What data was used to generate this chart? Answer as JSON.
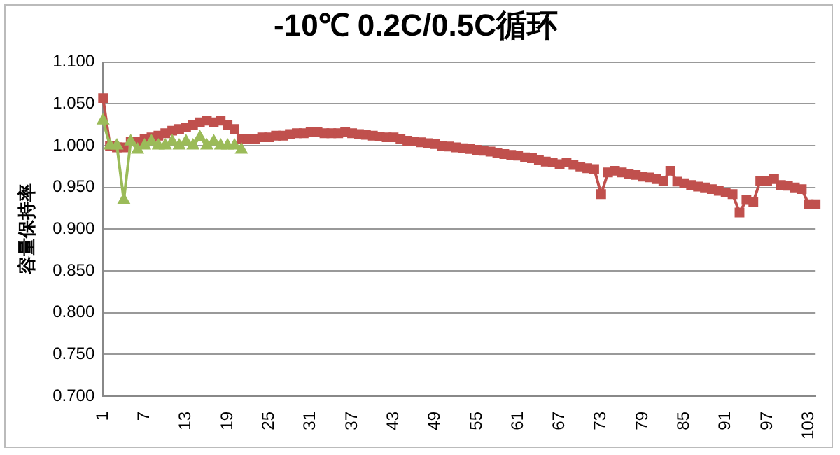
{
  "chart_data": {
    "type": "line",
    "title": "-10℃ 0.2C/0.5C循环",
    "ylabel": "容量保持率",
    "categories": [
      "1",
      null,
      null,
      null,
      null,
      null,
      "7",
      null,
      null,
      null,
      null,
      null,
      "13",
      null,
      null,
      null,
      null,
      null,
      "19",
      null,
      null,
      null,
      null,
      null,
      "25",
      null,
      null,
      null,
      null,
      null,
      "31",
      null,
      null,
      null,
      null,
      null,
      "37",
      null,
      null,
      null,
      null,
      null,
      "43",
      null,
      null,
      null,
      null,
      null,
      "49",
      null,
      null,
      null,
      null,
      null,
      "55",
      null,
      null,
      null,
      null,
      null,
      "61",
      null,
      null,
      null,
      null,
      null,
      "67",
      null,
      null,
      null,
      null,
      null,
      "73",
      null,
      null,
      null,
      null,
      null,
      "79",
      null,
      null,
      null,
      null,
      null,
      "85",
      null,
      null,
      null,
      null,
      null,
      "91",
      null,
      null,
      null,
      null,
      null,
      "97",
      null,
      null,
      null,
      null,
      null,
      "103",
      null
    ],
    "series": [
      {
        "color": "#c0504d",
        "marker": "square",
        "values": [
          1.057,
          1.0,
          0.998,
          0.998,
          1.005,
          1.005,
          1.008,
          1.01,
          1.012,
          1.015,
          1.018,
          1.02,
          1.022,
          1.025,
          1.028,
          1.03,
          1.028,
          1.03,
          1.025,
          1.02,
          1.008,
          1.008,
          1.008,
          1.01,
          1.01,
          1.012,
          1.012,
          1.014,
          1.015,
          1.015,
          1.016,
          1.016,
          1.015,
          1.015,
          1.015,
          1.016,
          1.015,
          1.014,
          1.013,
          1.012,
          1.011,
          1.01,
          1.01,
          1.008,
          1.006,
          1.005,
          1.004,
          1.003,
          1.002,
          1.0,
          0.999,
          0.998,
          0.997,
          0.996,
          0.995,
          0.994,
          0.993,
          0.991,
          0.99,
          0.989,
          0.988,
          0.986,
          0.985,
          0.983,
          0.981,
          0.98,
          0.978,
          0.98,
          0.977,
          0.975,
          0.973,
          0.972,
          0.942,
          0.968,
          0.97,
          0.968,
          0.966,
          0.965,
          0.963,
          0.962,
          0.96,
          0.958,
          0.97,
          0.957,
          0.955,
          0.953,
          0.951,
          0.95,
          0.948,
          0.946,
          0.944,
          0.942,
          0.92,
          0.935,
          0.933,
          0.958,
          0.958,
          0.96,
          0.953,
          0.952,
          0.95,
          0.948,
          0.93,
          0.93
        ]
      },
      {
        "color": "#9bbb59",
        "marker": "triangle",
        "values": [
          1.03,
          1.0,
          1.0,
          0.935,
          1.005,
          0.995,
          1.0,
          1.005,
          1.0,
          1.0,
          1.005,
          1.0,
          1.005,
          1.0,
          1.01,
          1.0,
          1.005,
          1.0,
          1.0,
          1.0,
          0.995,
          null,
          null,
          null,
          null,
          null,
          null,
          null,
          null,
          null,
          null,
          null,
          null,
          null,
          null,
          null,
          null,
          null,
          null,
          null,
          null,
          null,
          null,
          null,
          null,
          null,
          null,
          null,
          null,
          null,
          null,
          null,
          null,
          null,
          null,
          null,
          null,
          null,
          null,
          null,
          null,
          null,
          null,
          null,
          null,
          null,
          null,
          null,
          null,
          null,
          null,
          null,
          null,
          null,
          null,
          null,
          null,
          null,
          null,
          null,
          null,
          null,
          null,
          null,
          null,
          null,
          null,
          null,
          null,
          null,
          null,
          null,
          null,
          null,
          null,
          null,
          null,
          null,
          null,
          null,
          null,
          null,
          null,
          null
        ]
      }
    ],
    "ylim": [
      0.7,
      1.1
    ],
    "yticks": [
      {
        "value": 0.7,
        "label": "0.700"
      },
      {
        "value": 0.75,
        "label": "0.750"
      },
      {
        "value": 0.8,
        "label": "0.800"
      },
      {
        "value": 0.85,
        "label": "0.850"
      },
      {
        "value": 0.9,
        "label": "0.900"
      },
      {
        "value": 0.95,
        "label": "0.950"
      },
      {
        "value": 1.0,
        "label": "1.000"
      },
      {
        "value": 1.05,
        "label": "1.050"
      },
      {
        "value": 1.1,
        "label": "1.100"
      }
    ],
    "grid": "y",
    "legend": false
  }
}
